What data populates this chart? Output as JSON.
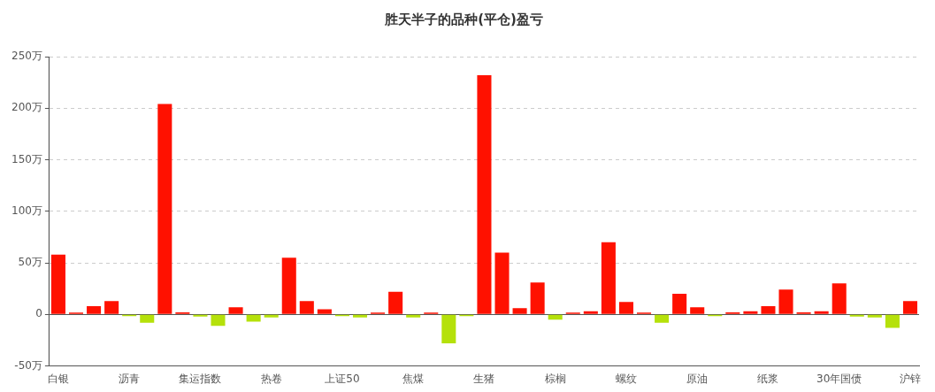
{
  "chart_data": {
    "type": "bar",
    "title": "胜天半子的品种(平仓)盈亏",
    "categories": [
      "白银",
      null,
      null,
      null,
      "沥青",
      null,
      null,
      null,
      "集运指数",
      null,
      null,
      null,
      "热卷",
      null,
      null,
      null,
      "上证50",
      null,
      null,
      null,
      "焦煤",
      null,
      null,
      null,
      "生猪",
      null,
      null,
      null,
      "棕榈",
      null,
      null,
      null,
      "螺纹",
      null,
      null,
      null,
      "原油",
      null,
      null,
      null,
      "纸浆",
      null,
      null,
      null,
      "30年国债",
      null,
      null,
      null,
      "沪锌"
    ],
    "values": [
      58,
      1,
      8,
      13,
      -1,
      -8,
      204,
      2,
      -2,
      -11,
      7,
      -7,
      -3,
      55,
      13,
      5,
      -1,
      -3,
      1,
      22,
      -3,
      1,
      -28,
      -1,
      232,
      60,
      6,
      31,
      -5,
      1,
      3,
      70,
      12,
      1,
      -8,
      20,
      7,
      -1,
      2,
      3,
      8,
      24,
      2,
      3,
      30,
      -2,
      -3,
      -13,
      13
    ],
    "colors": [
      "#ff1100",
      "#ff1100",
      "#ff1100",
      "#ff1100",
      "#b5e10a",
      "#b5e10a",
      "#ff1100",
      "#ff1100",
      "#b5e10a",
      "#b5e10a",
      "#ff1100",
      "#b5e10a",
      "#b5e10a",
      "#ff1100",
      "#ff1100",
      "#ff1100",
      "#b5e10a",
      "#b5e10a",
      "#ff1100",
      "#ff1100",
      "#b5e10a",
      "#ff1100",
      "#b5e10a",
      "#b5e10a",
      "#ff1100",
      "#ff1100",
      "#ff1100",
      "#ff1100",
      "#b5e10a",
      "#ff1100",
      "#ff1100",
      "#ff1100",
      "#ff1100",
      "#ff1100",
      "#b5e10a",
      "#ff1100",
      "#ff1100",
      "#b5e10a",
      "#ff1100",
      "#ff1100",
      "#ff1100",
      "#ff1100",
      "#ff1100",
      "#ff1100",
      "#ff1100",
      "#b5e10a",
      "#b5e10a",
      "#b5e10a",
      "#ff1100"
    ],
    "ylim": [
      -50,
      250
    ],
    "yticks": [
      {
        "value": -50,
        "label": "-50万"
      },
      0,
      {
        "value": 50,
        "label": "50万"
      },
      {
        "value": 100,
        "label": "100万"
      },
      {
        "value": 150,
        "label": "150万"
      },
      {
        "value": 200,
        "label": "200万"
      },
      {
        "value": 250,
        "label": "250万"
      }
    ],
    "grid": "y",
    "legend": false
  }
}
